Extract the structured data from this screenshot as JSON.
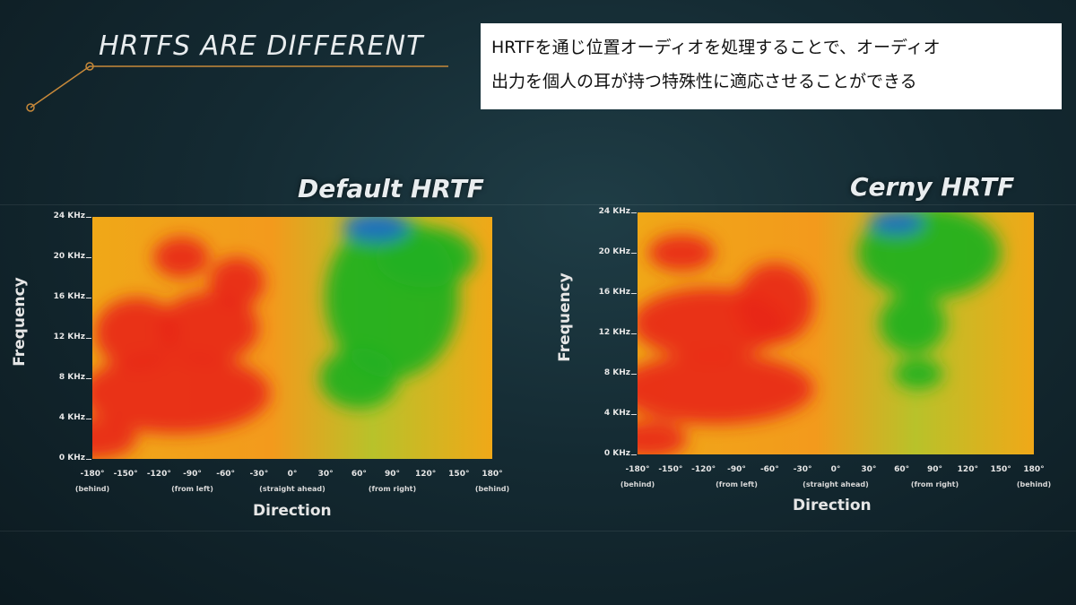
{
  "slide": {
    "title": "HRTFS ARE DIFFERENT",
    "caption_line1": "HRTFを通じ位置オーディオを処理することで、オーディオ",
    "caption_line2": "出力を個人の耳が持つ特殊性に適応させることができる",
    "accent_color": "#c7893a"
  },
  "chart_data": [
    {
      "type": "heatmap",
      "title": "Default HRTF",
      "xlabel": "Direction",
      "ylabel": "Frequency",
      "x_ticks": [
        "-180°",
        "-150°",
        "-120°",
        "-90°",
        "-60°",
        "-30°",
        "0°",
        "30°",
        "60°",
        "90°",
        "120°",
        "150°",
        "180°"
      ],
      "x_range": [
        -180,
        180
      ],
      "x_sublabels": [
        {
          "at": -180,
          "text": "(behind)"
        },
        {
          "at": -90,
          "text": "(from left)"
        },
        {
          "at": 0,
          "text": "(straight ahead)"
        },
        {
          "at": 90,
          "text": "(from right)"
        },
        {
          "at": 180,
          "text": "(behind)"
        }
      ],
      "y_ticks": [
        "0 KHz",
        "4 KHz",
        "8 KHz",
        "12 KHz",
        "16 KHz",
        "20 KHz",
        "24 KHz"
      ],
      "y_range": [
        0,
        24
      ],
      "colors": {
        "high": "#e8281a",
        "mid": "#f0a818",
        "low": "#20b020",
        "lowest": "#1c6cc8"
      },
      "regions": [
        {
          "level": "high",
          "x": -180,
          "y": 2,
          "rx": 40,
          "ry": 2
        },
        {
          "level": "high",
          "x": -105,
          "y": 6.5,
          "rx": 85,
          "ry": 4
        },
        {
          "level": "high",
          "x": -140,
          "y": 12.5,
          "rx": 38,
          "ry": 3.5
        },
        {
          "level": "high",
          "x": -75,
          "y": 13,
          "rx": 45,
          "ry": 3.5
        },
        {
          "level": "high",
          "x": -50,
          "y": 17.5,
          "rx": 25,
          "ry": 2.5
        },
        {
          "level": "high",
          "x": -100,
          "y": 20,
          "rx": 25,
          "ry": 2
        },
        {
          "level": "low",
          "x": 90,
          "y": 16,
          "rx": 60,
          "ry": 8
        },
        {
          "level": "low",
          "x": 60,
          "y": 8,
          "rx": 35,
          "ry": 3
        },
        {
          "level": "low",
          "x": 120,
          "y": 20,
          "rx": 45,
          "ry": 3
        },
        {
          "level": "lowest",
          "x": 75,
          "y": 23,
          "rx": 30,
          "ry": 1.5
        }
      ]
    },
    {
      "type": "heatmap",
      "title": "Cerny HRTF",
      "xlabel": "Direction",
      "ylabel": "Frequency",
      "x_ticks": [
        "-180°",
        "-150°",
        "-120°",
        "-90°",
        "-60°",
        "-30°",
        "0°",
        "30°",
        "60°",
        "90°",
        "120°",
        "150°",
        "180°"
      ],
      "x_range": [
        -180,
        180
      ],
      "x_sublabels": [
        {
          "at": -180,
          "text": "(behind)"
        },
        {
          "at": -90,
          "text": "(from left)"
        },
        {
          "at": 0,
          "text": "(straight ahead)"
        },
        {
          "at": 90,
          "text": "(from right)"
        },
        {
          "at": 180,
          "text": "(behind)"
        }
      ],
      "y_ticks": [
        "0 KHz",
        "4 KHz",
        "8 KHz",
        "12 KHz",
        "16 KHz",
        "20 KHz",
        "24 KHz"
      ],
      "y_range": [
        0,
        24
      ],
      "colors": {
        "high": "#e8281a",
        "mid": "#f0a818",
        "low": "#20b020",
        "lowest": "#1c6cc8"
      },
      "regions": [
        {
          "level": "high",
          "x": -170,
          "y": 1.5,
          "rx": 35,
          "ry": 1.8
        },
        {
          "level": "high",
          "x": -110,
          "y": 6.5,
          "rx": 90,
          "ry": 3.5
        },
        {
          "level": "high",
          "x": -115,
          "y": 13,
          "rx": 70,
          "ry": 3.5
        },
        {
          "level": "high",
          "x": -55,
          "y": 15,
          "rx": 35,
          "ry": 4
        },
        {
          "level": "high",
          "x": -140,
          "y": 20,
          "rx": 30,
          "ry": 1.8
        },
        {
          "level": "low",
          "x": 85,
          "y": 20,
          "rx": 65,
          "ry": 4.5
        },
        {
          "level": "low",
          "x": 70,
          "y": 13,
          "rx": 30,
          "ry": 3
        },
        {
          "level": "low",
          "x": 75,
          "y": 8,
          "rx": 22,
          "ry": 1.5
        },
        {
          "level": "lowest",
          "x": 55,
          "y": 23,
          "rx": 25,
          "ry": 1.2
        }
      ]
    }
  ]
}
